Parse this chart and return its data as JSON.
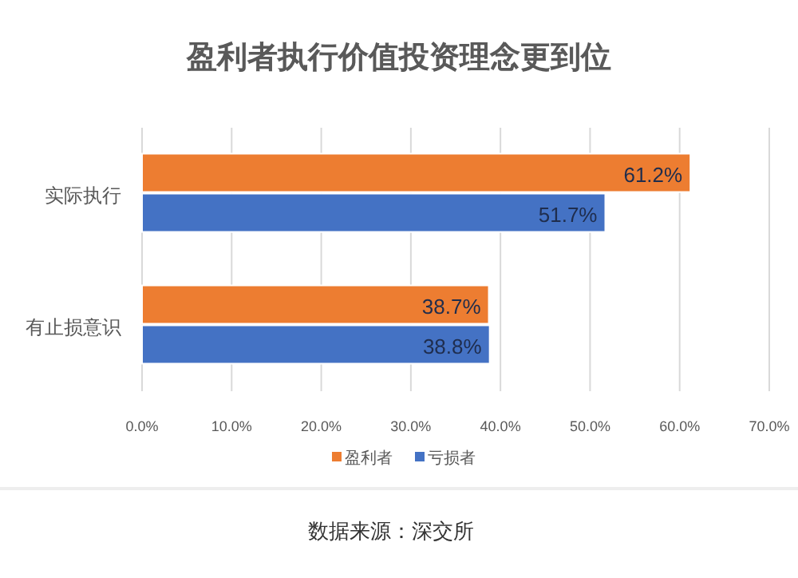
{
  "chart_data": {
    "type": "bar",
    "orientation": "horizontal",
    "title": "盈利者执行价值投资理念更到位",
    "categories": [
      "实际执行",
      "有止损意识"
    ],
    "series": [
      {
        "name": "盈利者",
        "color": "#ed7d31",
        "values": [
          61.2,
          38.7
        ],
        "value_labels": [
          "61.2%",
          "38.7%"
        ]
      },
      {
        "name": "亏损者",
        "color": "#4472c4",
        "values": [
          51.7,
          38.8
        ],
        "value_labels": [
          "51.7%",
          "38.8%"
        ]
      }
    ],
    "xlim": [
      0,
      70
    ],
    "xticks": [
      {
        "value": 0,
        "label": "0.0%"
      },
      {
        "value": 10,
        "label": "10.0%"
      },
      {
        "value": 20,
        "label": "20.0%"
      },
      {
        "value": 30,
        "label": "30.0%"
      },
      {
        "value": 40,
        "label": "40.0%"
      },
      {
        "value": 50,
        "label": "50.0%"
      },
      {
        "value": 60,
        "label": "60.0%"
      },
      {
        "value": 70,
        "label": "70.0%"
      }
    ],
    "grid": "x",
    "legend": "bottom",
    "annotations": [
      "数据来源：深交所"
    ]
  }
}
